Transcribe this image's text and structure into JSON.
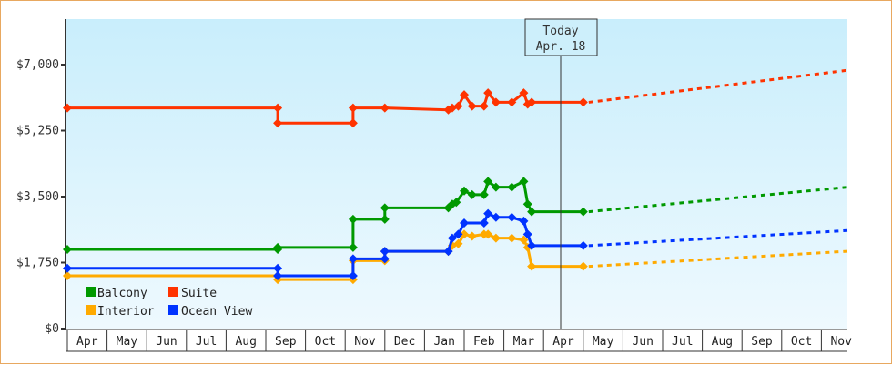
{
  "chart_data": {
    "type": "line",
    "title": "",
    "xlabel": "",
    "ylabel": "",
    "ylim": [
      0,
      7000
    ],
    "y_ticks": [
      "$0",
      "$1,750",
      "$3,500",
      "$5,250",
      "$7,000"
    ],
    "y_tick_values": [
      0,
      1750,
      3500,
      5250,
      7000
    ],
    "x_ticks": [
      "Apr",
      "May",
      "Jun",
      "Jul",
      "Aug",
      "Sep",
      "Oct",
      "Nov",
      "Dec",
      "Jan",
      "Feb",
      "Mar",
      "Apr",
      "May",
      "Jun",
      "Jul",
      "Aug",
      "Sep",
      "Oct",
      "Nov"
    ],
    "grid": false,
    "legend_position": "lower-left inside",
    "today_marker": {
      "line1": "Today",
      "line2": "Apr. 18"
    },
    "series": [
      {
        "name": "Balcony",
        "color": "#009900",
        "points": [
          [
            0,
            2100
          ],
          [
            5.3,
            2100
          ],
          [
            5.3,
            2150
          ],
          [
            7.2,
            2150
          ],
          [
            7.2,
            2900
          ],
          [
            8.0,
            2900
          ],
          [
            8.0,
            3200
          ],
          [
            9.6,
            3200
          ],
          [
            9.7,
            3300
          ],
          [
            9.8,
            3350
          ],
          [
            10.0,
            3650
          ],
          [
            10.2,
            3550
          ],
          [
            10.5,
            3550
          ],
          [
            10.6,
            3900
          ],
          [
            10.8,
            3750
          ],
          [
            11.2,
            3750
          ],
          [
            11.5,
            3900
          ],
          [
            11.6,
            3300
          ],
          [
            11.7,
            3100
          ],
          [
            13.0,
            3100
          ]
        ],
        "forecast": [
          [
            13.0,
            3100
          ],
          [
            20.5,
            3750
          ]
        ]
      },
      {
        "name": "Suite",
        "color": "#ff3300",
        "points": [
          [
            0,
            5850
          ],
          [
            5.3,
            5850
          ],
          [
            5.3,
            5450
          ],
          [
            7.2,
            5450
          ],
          [
            7.2,
            5850
          ],
          [
            8.0,
            5850
          ],
          [
            9.6,
            5800
          ],
          [
            9.7,
            5850
          ],
          [
            9.85,
            5900
          ],
          [
            10.0,
            6200
          ],
          [
            10.2,
            5900
          ],
          [
            10.5,
            5900
          ],
          [
            10.6,
            6250
          ],
          [
            10.8,
            6000
          ],
          [
            11.2,
            6000
          ],
          [
            11.5,
            6250
          ],
          [
            11.6,
            5950
          ],
          [
            11.7,
            6000
          ],
          [
            13.0,
            6000
          ]
        ],
        "forecast": [
          [
            13.0,
            6000
          ],
          [
            20.5,
            6850
          ]
        ]
      },
      {
        "name": "Interior",
        "color": "#ffaa00",
        "points": [
          [
            0,
            1400
          ],
          [
            5.3,
            1400
          ],
          [
            5.3,
            1300
          ],
          [
            7.2,
            1300
          ],
          [
            7.2,
            1800
          ],
          [
            8.0,
            1800
          ],
          [
            8.0,
            2050
          ],
          [
            9.6,
            2050
          ],
          [
            9.7,
            2200
          ],
          [
            9.85,
            2250
          ],
          [
            10.0,
            2500
          ],
          [
            10.2,
            2450
          ],
          [
            10.5,
            2500
          ],
          [
            10.6,
            2500
          ],
          [
            10.8,
            2400
          ],
          [
            11.2,
            2400
          ],
          [
            11.5,
            2350
          ],
          [
            11.6,
            2150
          ],
          [
            11.7,
            1650
          ],
          [
            13.0,
            1650
          ]
        ],
        "forecast": [
          [
            13.0,
            1650
          ],
          [
            20.5,
            2050
          ]
        ]
      },
      {
        "name": "Ocean View",
        "color": "#0033ff",
        "points": [
          [
            0,
            1600
          ],
          [
            5.3,
            1600
          ],
          [
            5.3,
            1400
          ],
          [
            7.2,
            1400
          ],
          [
            7.2,
            1850
          ],
          [
            8.0,
            1850
          ],
          [
            8.0,
            2050
          ],
          [
            9.6,
            2050
          ],
          [
            9.7,
            2400
          ],
          [
            9.85,
            2500
          ],
          [
            10.0,
            2800
          ],
          [
            10.2,
            2800
          ],
          [
            10.5,
            2800
          ],
          [
            10.6,
            3050
          ],
          [
            10.8,
            2950
          ],
          [
            11.2,
            2950
          ],
          [
            11.5,
            2850
          ],
          [
            11.6,
            2500
          ],
          [
            11.7,
            2200
          ],
          [
            13.0,
            2200
          ]
        ],
        "forecast": [
          [
            13.0,
            2200
          ],
          [
            20.5,
            2600
          ]
        ]
      }
    ]
  },
  "legend": [
    {
      "label": "Balcony",
      "color": "#009900"
    },
    {
      "label": "Suite",
      "color": "#ff3300"
    },
    {
      "label": "Interior",
      "color": "#ffaa00"
    },
    {
      "label": "Ocean View",
      "color": "#0033ff"
    }
  ],
  "today": {
    "line1": "Today",
    "line2": "Apr. 18"
  }
}
